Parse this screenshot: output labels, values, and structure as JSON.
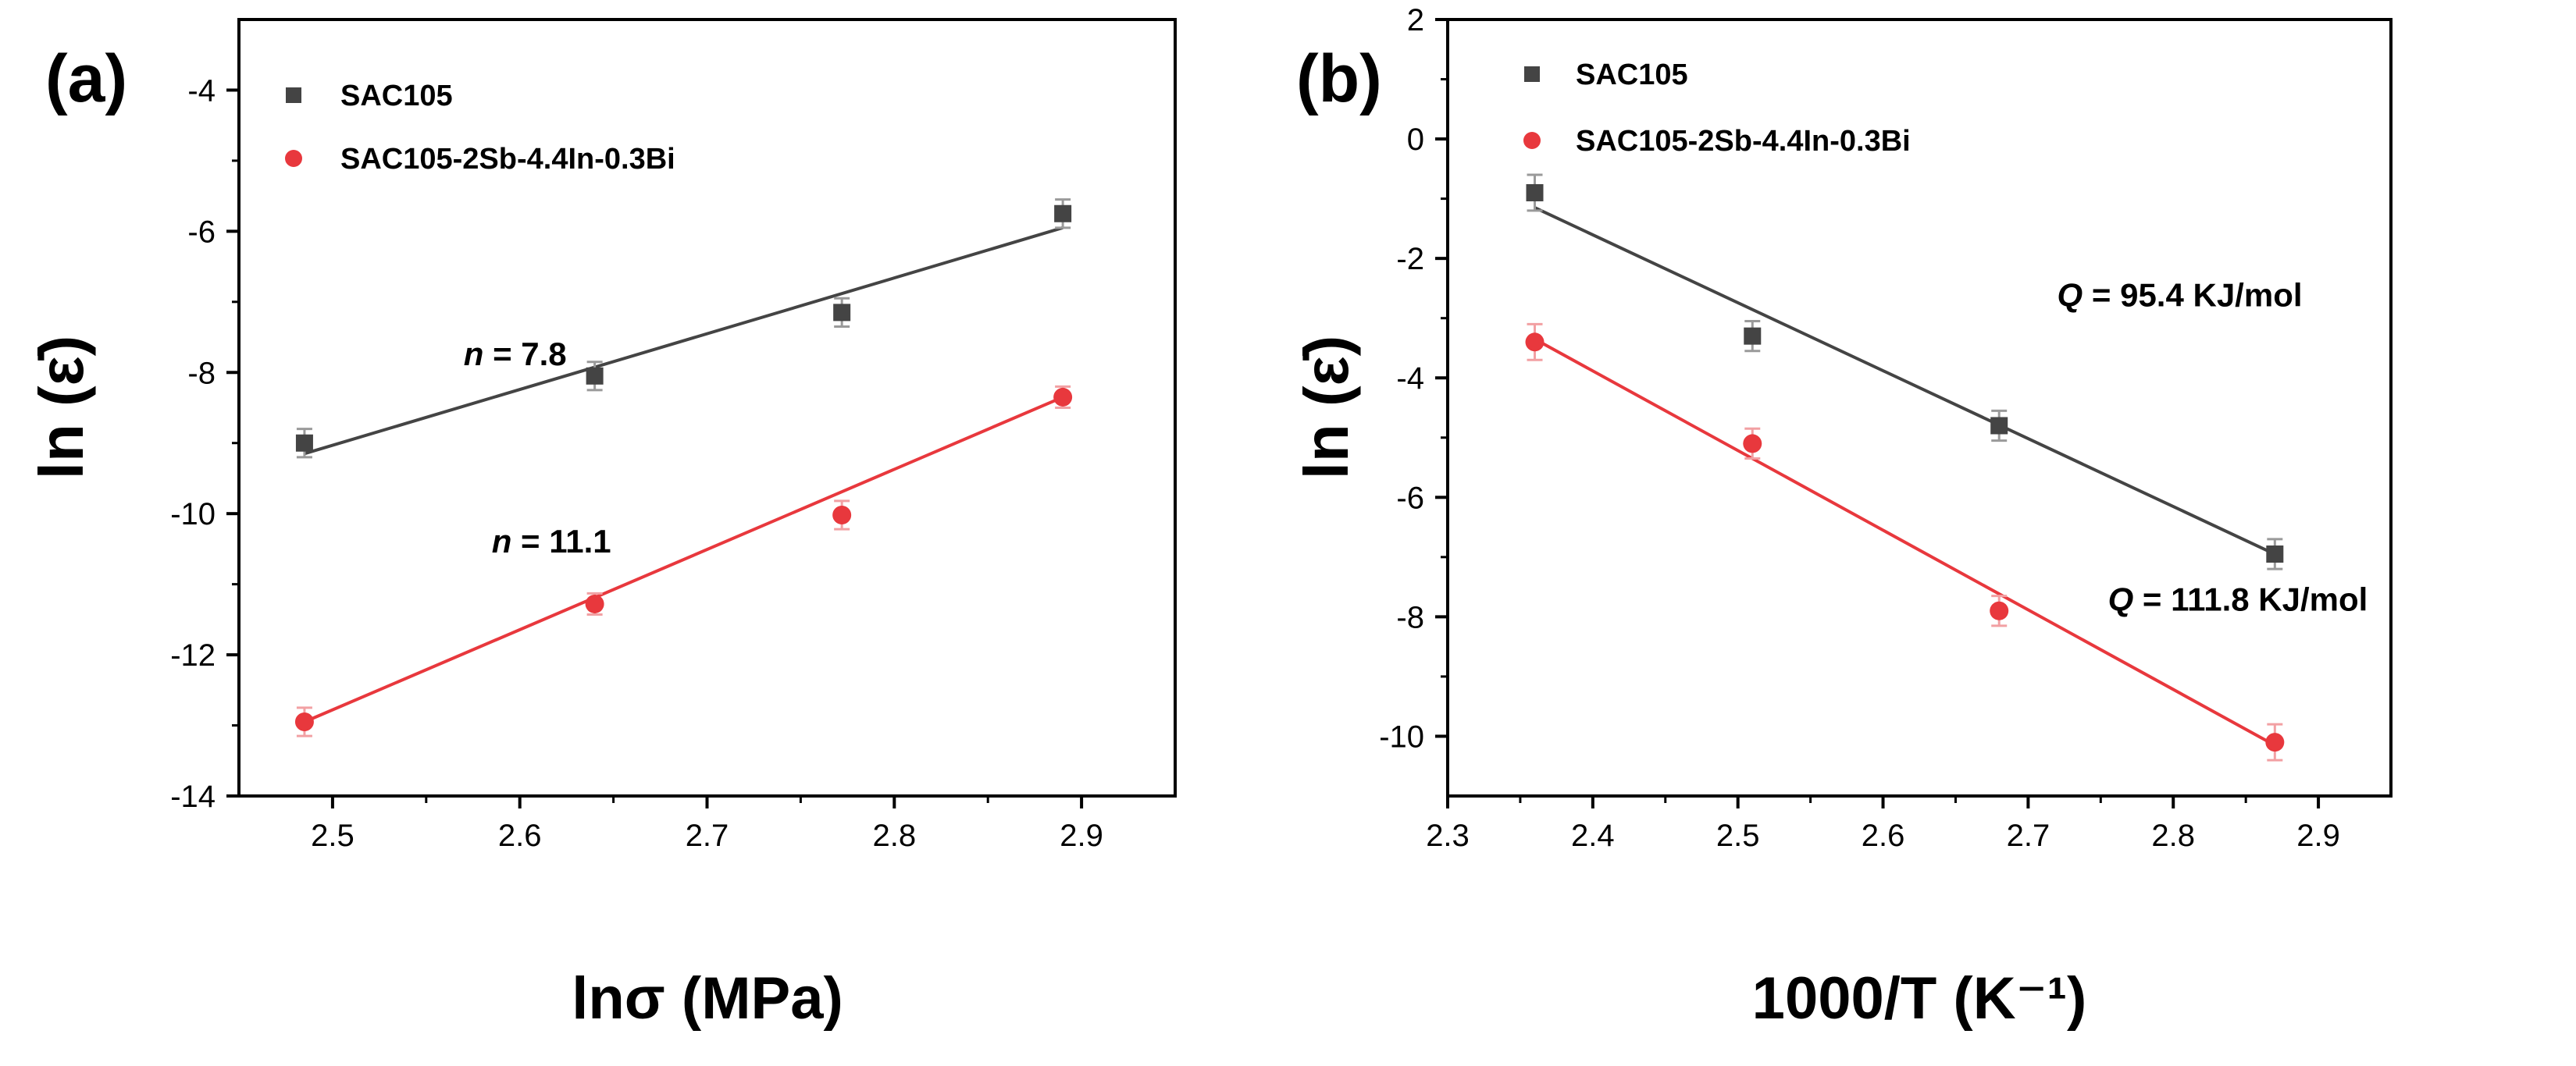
{
  "chart_data": [
    {
      "type": "scatter",
      "panel_label": "(a)",
      "xlabel": "lnσ (MPa)",
      "ylabel": "ln (ε̇)",
      "xlim": [
        2.45,
        2.95
      ],
      "ylim": [
        -14,
        -3
      ],
      "xticks": [
        2.5,
        2.6,
        2.7,
        2.8,
        2.9
      ],
      "yticks": [
        -14,
        -12,
        -10,
        -8,
        -6,
        -4
      ],
      "xtick_labels": [
        "2.5",
        "2.6",
        "2.7",
        "2.8",
        "2.9"
      ],
      "ytick_labels": [
        "-14",
        "-12",
        "-10",
        "-8",
        "-6",
        "-4"
      ],
      "legend": [
        {
          "label": "SAC105",
          "marker": "square",
          "color": "#444444"
        },
        {
          "label": "SAC105-2Sb-4.4In-0.3Bi",
          "marker": "circle",
          "color": "#e8383d"
        }
      ],
      "series": [
        {
          "name": "SAC105",
          "color": "#444444",
          "marker": "square",
          "x": [
            2.485,
            2.64,
            2.772,
            2.89
          ],
          "y": [
            -9.0,
            -8.05,
            -7.15,
            -5.75
          ],
          "err": [
            0.2,
            0.2,
            0.2,
            0.2
          ],
          "fit": {
            "x": [
              2.485,
              2.89
            ],
            "y": [
              -9.15,
              -5.95
            ]
          }
        },
        {
          "name": "SAC105-2Sb-4.4In-0.3Bi",
          "color": "#e8383d",
          "marker": "circle",
          "x": [
            2.485,
            2.64,
            2.772,
            2.89
          ],
          "y": [
            -12.95,
            -11.28,
            -10.02,
            -8.35
          ],
          "err": [
            0.2,
            0.15,
            0.2,
            0.15
          ],
          "fit": {
            "x": [
              2.485,
              2.89
            ],
            "y": [
              -12.95,
              -8.35
            ]
          }
        }
      ],
      "annotations": [
        {
          "symbol": "n",
          "text": " = 7.8",
          "x": 2.57,
          "y": -7.9
        },
        {
          "symbol": "n",
          "text": " = 11.1",
          "x": 2.585,
          "y": -10.55
        }
      ]
    },
    {
      "type": "scatter",
      "panel_label": "(b)",
      "xlabel": "1000/T (K⁻¹)",
      "ylabel": "ln (ε̇)",
      "xlim": [
        2.3,
        2.95
      ],
      "ylim": [
        -11,
        2
      ],
      "xticks": [
        2.3,
        2.4,
        2.5,
        2.6,
        2.7,
        2.8,
        2.9
      ],
      "yticks": [
        -10,
        -8,
        -6,
        -4,
        -2,
        0,
        2
      ],
      "xtick_labels": [
        "2.3",
        "2.4",
        "2.5",
        "2.6",
        "2.7",
        "2.8",
        "2.9"
      ],
      "ytick_labels": [
        "-10",
        "-8",
        "-6",
        "-4",
        "-2",
        "0",
        "2"
      ],
      "legend": [
        {
          "label": "SAC105",
          "marker": "square",
          "color": "#444444"
        },
        {
          "label": "SAC105-2Sb-4.4In-0.3Bi",
          "marker": "circle",
          "color": "#e8383d"
        }
      ],
      "series": [
        {
          "name": "SAC105",
          "color": "#444444",
          "marker": "square",
          "x": [
            2.36,
            2.51,
            2.68,
            2.87
          ],
          "y": [
            -0.9,
            -3.3,
            -4.8,
            -6.95
          ],
          "err": [
            0.3,
            0.25,
            0.25,
            0.25
          ],
          "fit": {
            "x": [
              2.36,
              2.87
            ],
            "y": [
              -1.15,
              -6.95
            ]
          }
        },
        {
          "name": "SAC105-2Sb-4.4In-0.3Bi",
          "color": "#e8383d",
          "marker": "circle",
          "x": [
            2.36,
            2.51,
            2.68,
            2.87
          ],
          "y": [
            -3.4,
            -5.1,
            -7.9,
            -10.1
          ],
          "err": [
            0.3,
            0.25,
            0.25,
            0.3
          ],
          "fit": {
            "x": [
              2.36,
              2.87
            ],
            "y": [
              -3.35,
              -10.15
            ]
          }
        }
      ],
      "annotations": [
        {
          "symbol": "Q",
          "text": " = 95.4 KJ/mol",
          "x": 2.72,
          "y": -2.8
        },
        {
          "symbol": "Q",
          "text": " = 111.8 KJ/mol",
          "x": 2.755,
          "y": -7.9
        }
      ]
    }
  ]
}
